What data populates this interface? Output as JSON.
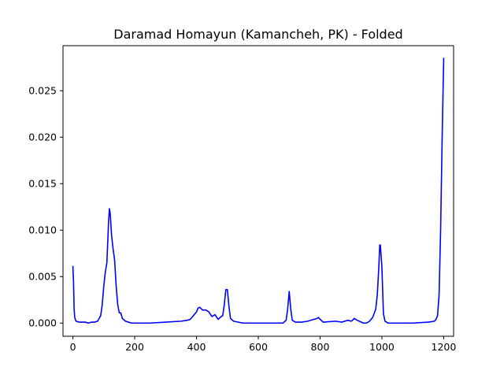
{
  "chart_data": {
    "type": "line",
    "title": "Daramad Homayun (Kamancheh, PK) - Folded",
    "xlabel": "",
    "ylabel": "",
    "xlim": [
      -32,
      1232
    ],
    "ylim": [
      -0.00142,
      0.02985
    ],
    "x_ticks": [
      0,
      200,
      400,
      600,
      800,
      1000,
      1200
    ],
    "x_tick_labels": [
      "0",
      "200",
      "400",
      "600",
      "800",
      "1000",
      "1200"
    ],
    "y_ticks": [
      0.0,
      0.005,
      0.01,
      0.015,
      0.02,
      0.025
    ],
    "y_tick_labels": [
      "0.000",
      "0.005",
      "0.010",
      "0.015",
      "0.020",
      "0.025"
    ],
    "grid": false,
    "legend": "none",
    "series": [
      {
        "name": "folded",
        "color": "#0000ff",
        "x": [
          0,
          2,
          4,
          6,
          10,
          20,
          30,
          40,
          50,
          60,
          70,
          80,
          90,
          95,
          100,
          105,
          110,
          115,
          118,
          120,
          122,
          125,
          130,
          135,
          140,
          145,
          150,
          155,
          160,
          170,
          180,
          190,
          200,
          250,
          300,
          350,
          370,
          380,
          390,
          400,
          405,
          410,
          420,
          430,
          440,
          450,
          460,
          470,
          480,
          485,
          490,
          495,
          500,
          505,
          510,
          520,
          550,
          600,
          650,
          680,
          690,
          695,
          700,
          705,
          710,
          720,
          740,
          760,
          780,
          790,
          795,
          800,
          810,
          850,
          870,
          880,
          890,
          900,
          905,
          910,
          920,
          940,
          950,
          960,
          970,
          980,
          985,
          990,
          993,
          995,
          1000,
          1005,
          1010,
          1020,
          1050,
          1100,
          1150,
          1170,
          1175,
          1180,
          1185,
          1190,
          1195,
          1200
        ],
        "values": [
          0.0061,
          0.0045,
          0.0015,
          0.0006,
          0.0002,
          0.0001,
          0.0001,
          0.0001,
          0.0,
          0.0001,
          0.0001,
          0.0002,
          0.0008,
          0.002,
          0.004,
          0.0055,
          0.0065,
          0.0105,
          0.0123,
          0.012,
          0.0112,
          0.0095,
          0.008,
          0.0068,
          0.004,
          0.002,
          0.0011,
          0.0011,
          0.0005,
          0.0002,
          0.0001,
          0.0,
          0.0,
          0.0,
          0.0001,
          0.0002,
          0.0003,
          0.0004,
          0.0008,
          0.0012,
          0.0016,
          0.0017,
          0.0014,
          0.0014,
          0.0012,
          0.0007,
          0.0009,
          0.0004,
          0.0007,
          0.0008,
          0.002,
          0.0036,
          0.0036,
          0.0018,
          0.0005,
          0.0002,
          0.0,
          0.0,
          0.0,
          0.0,
          0.0003,
          0.0015,
          0.0034,
          0.0015,
          0.0003,
          0.0001,
          0.0001,
          0.0002,
          0.0004,
          0.0005,
          0.0006,
          0.0004,
          0.0001,
          0.0002,
          0.0001,
          0.0002,
          0.0003,
          0.0002,
          0.0003,
          0.0005,
          0.0003,
          0.0,
          0.0,
          0.0002,
          0.0006,
          0.0015,
          0.003,
          0.006,
          0.0084,
          0.0084,
          0.006,
          0.001,
          0.0002,
          0.0,
          0.0,
          0.0,
          0.0001,
          0.0002,
          0.0004,
          0.0008,
          0.003,
          0.01,
          0.02,
          0.0285
        ]
      }
    ]
  }
}
